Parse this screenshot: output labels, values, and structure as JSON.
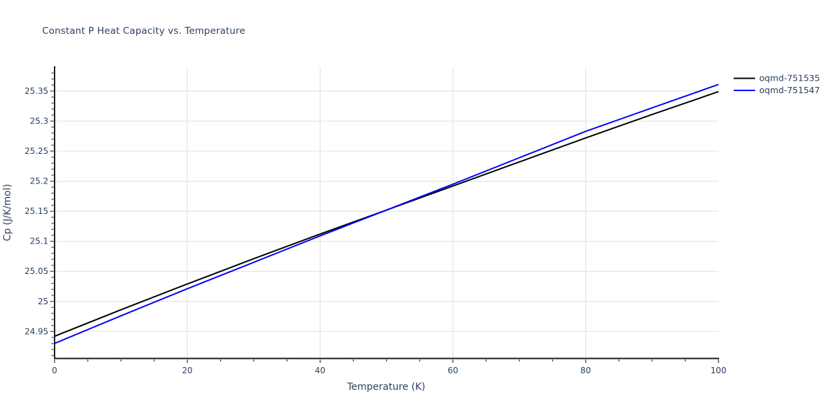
{
  "page": {
    "background": "#ffffff"
  },
  "chart_data": {
    "type": "line",
    "title": "Constant P Heat Capacity vs. Temperature",
    "xlabel": "Temperature (K)",
    "ylabel": "Cp (J/K/mol)",
    "xlim": [
      0,
      100
    ],
    "ylim": [
      24.905,
      25.389
    ],
    "grid": true,
    "legend_position": "outside-top-right",
    "x": [
      0,
      10,
      20,
      30,
      40,
      50,
      60,
      70,
      80,
      90,
      100
    ],
    "series": [
      {
        "name": "oqmd-751535",
        "color": "#000000",
        "values": [
          24.942,
          24.986,
          25.029,
          25.071,
          25.112,
          25.152,
          25.192,
          25.232,
          25.272,
          25.311,
          25.349
        ]
      },
      {
        "name": "oqmd-751547",
        "color": "#0000ff",
        "values": [
          24.93,
          24.976,
          25.021,
          25.065,
          25.109,
          25.152,
          25.195,
          25.239,
          25.283,
          25.322,
          25.361
        ]
      }
    ],
    "xticks": {
      "major": [
        0,
        20,
        40,
        60,
        80,
        100
      ],
      "labels": [
        "0",
        "20",
        "40",
        "60",
        "80",
        "100"
      ],
      "minor_step": 5
    },
    "yticks": {
      "major": [
        24.95,
        25,
        25.05,
        25.1,
        25.15,
        25.2,
        25.25,
        25.3,
        25.35
      ],
      "labels": [
        "24.95",
        "25",
        "25.05",
        "25.1",
        "25.15",
        "25.2",
        "25.25",
        "25.3",
        "25.35"
      ],
      "minor_step": 0.01
    },
    "colors": {
      "text": "#2a3f5f",
      "grid": "#e4e4e4",
      "axis": "#1a1a1a",
      "tick": "#444444",
      "background": "#ffffff"
    }
  }
}
